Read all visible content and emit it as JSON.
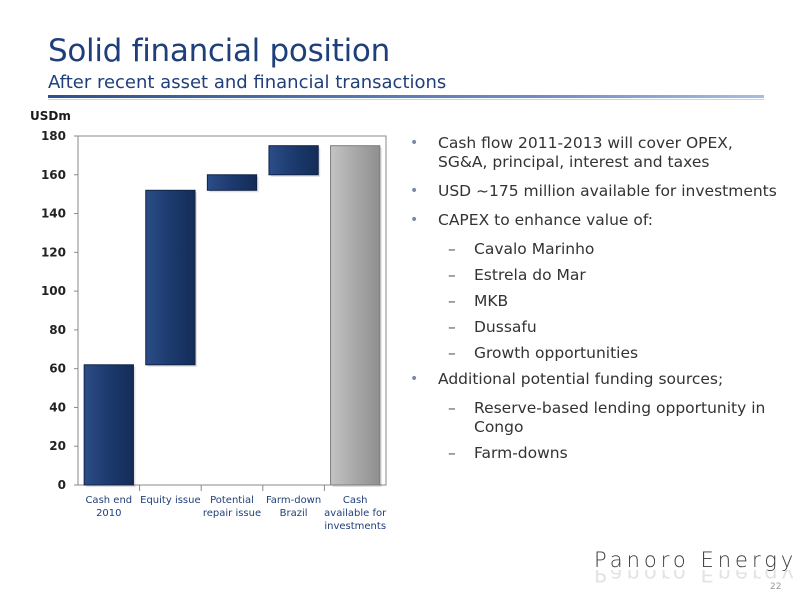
{
  "title": "Solid financial position",
  "subtitle": "After recent asset and financial transactions",
  "chart_data": {
    "type": "bar",
    "subtype": "waterfall",
    "ylabel": "USDm",
    "ylim": [
      0,
      180
    ],
    "yticks": [
      0,
      20,
      40,
      60,
      80,
      100,
      120,
      140,
      160,
      180
    ],
    "categories": [
      [
        "Cash end",
        "2010"
      ],
      [
        "Equity issue"
      ],
      [
        "Potential",
        "repair issue"
      ],
      [
        "Farm-down",
        "Brazil"
      ],
      [
        "Cash",
        "available for",
        "investments"
      ]
    ],
    "bars": [
      {
        "start": 0,
        "end": 62,
        "color": "#1c3a6e"
      },
      {
        "start": 62,
        "end": 152,
        "color": "#1c3a6e"
      },
      {
        "start": 152,
        "end": 160,
        "color": "#1c3a6e"
      },
      {
        "start": 160,
        "end": 175,
        "color": "#1c3a6e"
      },
      {
        "start": 0,
        "end": 175,
        "color": "#a9a9a9"
      }
    ],
    "grid": false
  },
  "bullets": [
    {
      "level": 1,
      "text": "Cash flow 2011-2013 will cover OPEX, SG&A, principal, interest and taxes"
    },
    {
      "level": 1,
      "text": "USD ~175 million available for investments"
    },
    {
      "level": 1,
      "text": "CAPEX to enhance value of:"
    },
    {
      "level": 2,
      "text": "Cavalo Marinho"
    },
    {
      "level": 2,
      "text": "Estrela do Mar"
    },
    {
      "level": 2,
      "text": "MKB"
    },
    {
      "level": 2,
      "text": "Dussafu"
    },
    {
      "level": 2,
      "text": "Growth opportunities"
    },
    {
      "level": 1,
      "text": "Additional potential funding sources;"
    },
    {
      "level": 2,
      "text": "Reserve-based lending opportunity in Congo"
    },
    {
      "level": 2,
      "text": "Farm-downs"
    }
  ],
  "logo": "Panoro Energy",
  "page_number": "22"
}
